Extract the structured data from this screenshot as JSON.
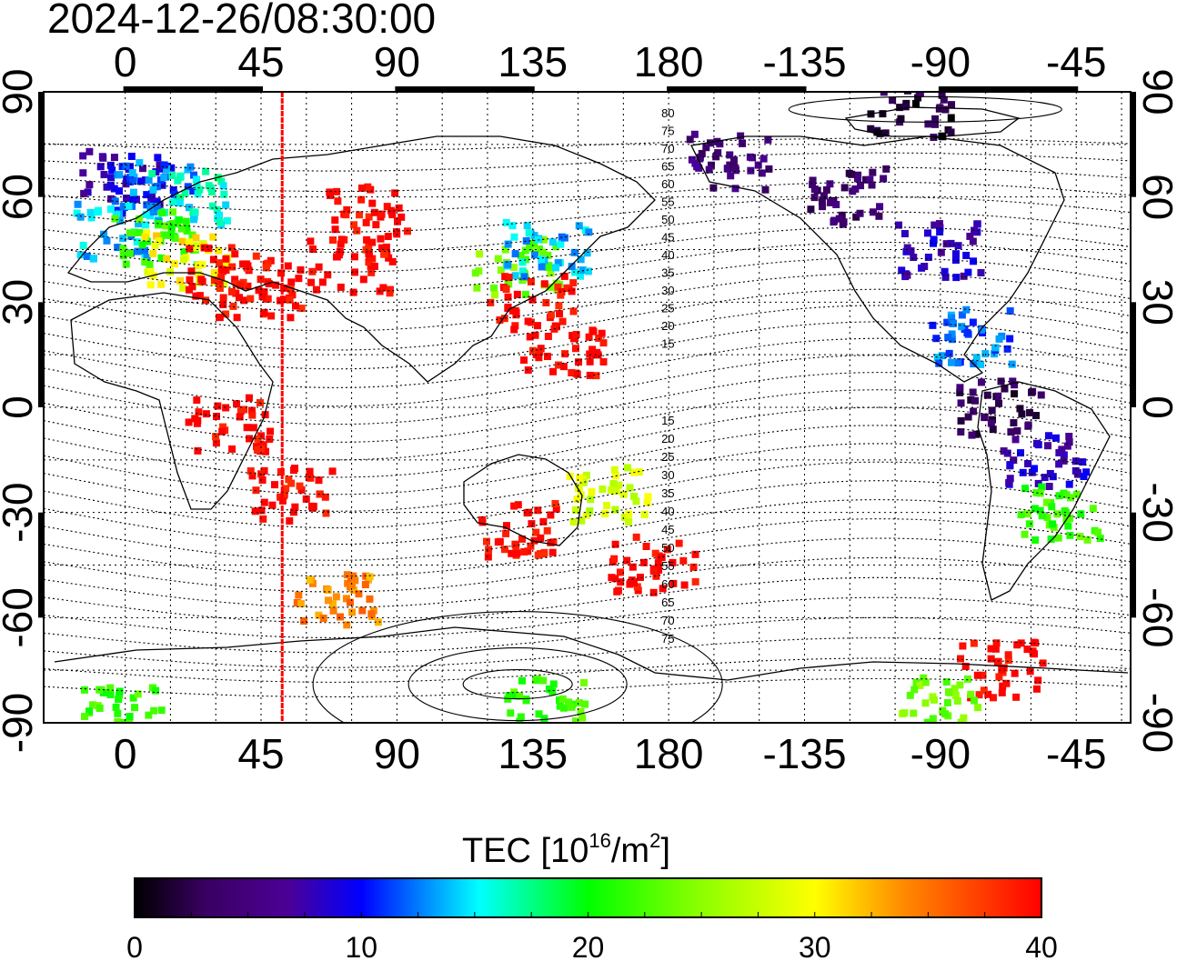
{
  "title": "2024-12-26/08:30:00",
  "x_axis": {
    "top_labels": [
      "0",
      "45",
      "90",
      "135",
      "180",
      "-135",
      "-90",
      "-45"
    ],
    "bottom_labels": [
      "0",
      "45",
      "90",
      "135",
      "180",
      "-135",
      "-90",
      "-45"
    ]
  },
  "y_axis": {
    "left_labels": [
      "90",
      "60",
      "30",
      "0",
      "-30",
      "-60",
      "-90"
    ],
    "right_labels": [
      "90",
      "60",
      "30",
      "0",
      "-30",
      "-60",
      "-90"
    ]
  },
  "contour_labels_north": [
    "80",
    "75",
    "70",
    "65",
    "60",
    "55",
    "50",
    "45",
    "40",
    "35",
    "30",
    "25",
    "20",
    "15"
  ],
  "contour_labels_south": [
    "15",
    "20",
    "25",
    "30",
    "35",
    "40",
    "45",
    "50",
    "55",
    "60",
    "65",
    "70",
    "75"
  ],
  "marker_longitude": 52,
  "colorbar": {
    "label_main": "TEC  [10",
    "label_exp": "16",
    "label_unit": "/m",
    "label_exp2": "2",
    "label_end": "]",
    "ticks": [
      "0",
      "10",
      "20",
      "30",
      "40"
    ],
    "min": 0,
    "max": 40
  },
  "colors": {
    "marker_line": "#ff0000",
    "frame": "#000000"
  },
  "tec_regions": [
    {
      "lon": 0,
      "lat": 65,
      "tec": 8
    },
    {
      "lon": 10,
      "lat": 62,
      "tec": 12
    },
    {
      "lon": 20,
      "lat": 60,
      "tec": 16
    },
    {
      "lon": -2,
      "lat": 50,
      "tec": 14
    },
    {
      "lon": 10,
      "lat": 48,
      "tec": 22
    },
    {
      "lon": 20,
      "lat": 42,
      "tec": 30
    },
    {
      "lon": 35,
      "lat": 38,
      "tec": 40
    },
    {
      "lon": 45,
      "lat": 33,
      "tec": 40
    },
    {
      "lon": 75,
      "lat": 40,
      "tec": 40
    },
    {
      "lon": 80,
      "lat": 55,
      "tec": 40
    },
    {
      "lon": 130,
      "lat": 40,
      "tec": 24
    },
    {
      "lon": 140,
      "lat": 45,
      "tec": 14
    },
    {
      "lon": 135,
      "lat": 30,
      "tec": 40
    },
    {
      "lon": 145,
      "lat": 15,
      "tec": 40
    },
    {
      "lon": 35,
      "lat": -5,
      "tec": 40
    },
    {
      "lon": 55,
      "lat": -25,
      "tec": 40
    },
    {
      "lon": 130,
      "lat": -35,
      "tec": 40
    },
    {
      "lon": 160,
      "lat": -25,
      "tec": 28
    },
    {
      "lon": 175,
      "lat": -45,
      "tec": 40
    },
    {
      "lon": 70,
      "lat": -55,
      "tec": 34
    },
    {
      "lon": 200,
      "lat": 70,
      "tec": 5
    },
    {
      "lon": 240,
      "lat": 60,
      "tec": 4
    },
    {
      "lon": 270,
      "lat": 45,
      "tec": 8
    },
    {
      "lon": 280,
      "lat": 20,
      "tec": 12
    },
    {
      "lon": 290,
      "lat": 0,
      "tec": 3
    },
    {
      "lon": 305,
      "lat": -15,
      "tec": 8
    },
    {
      "lon": 310,
      "lat": -30,
      "tec": 22
    },
    {
      "lon": 260,
      "lat": 85,
      "tec": 2
    },
    {
      "lon": 290,
      "lat": -75,
      "tec": 40
    },
    {
      "lon": 270,
      "lat": -85,
      "tec": 24
    },
    {
      "lon": 140,
      "lat": -85,
      "tec": 22
    },
    {
      "lon": 0,
      "lat": -88,
      "tec": 22
    }
  ]
}
